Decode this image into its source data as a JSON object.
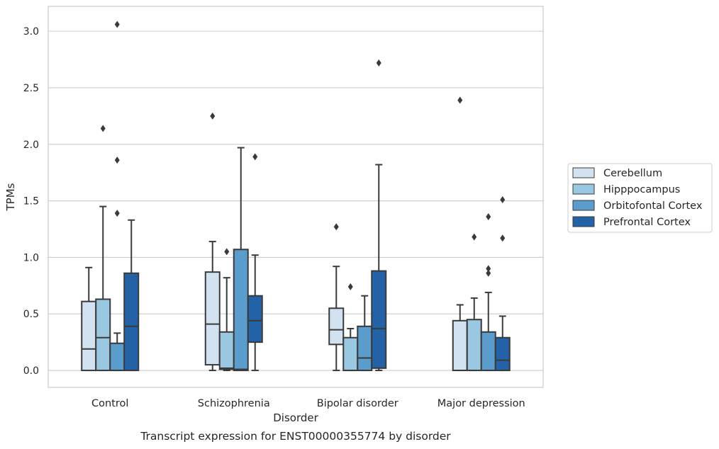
{
  "chart_data": {
    "type": "box",
    "title": "",
    "caption": "Transcript expression for ENST00000355774 by disorder",
    "xlabel": "Disorder",
    "ylabel": "TPMs",
    "ylim": [
      -0.15,
      3.22
    ],
    "yticks": [
      0.0,
      0.5,
      1.0,
      1.5,
      2.0,
      2.5,
      3.0
    ],
    "ytick_labels": [
      "0.0",
      "0.5",
      "1.0",
      "1.5",
      "2.0",
      "2.5",
      "3.0"
    ],
    "grid": "horizontal",
    "legend_position": "right",
    "categories": [
      "Control",
      "Schizophrenia",
      "Bipolar disorder",
      "Major depression"
    ],
    "series": [
      {
        "name": "Cerebellum",
        "color": "#d2e2f1",
        "boxes": [
          {
            "whisker_low": 0.0,
            "q1": 0.0,
            "median": 0.19,
            "q3": 0.61,
            "whisker_high": 0.91,
            "outliers": []
          },
          {
            "whisker_low": 0.0,
            "q1": 0.05,
            "median": 0.41,
            "q3": 0.87,
            "whisker_high": 1.14,
            "outliers": [
              2.25
            ]
          },
          {
            "whisker_low": 0.0,
            "q1": 0.23,
            "median": 0.36,
            "q3": 0.55,
            "whisker_high": 0.92,
            "outliers": [
              1.27
            ]
          },
          {
            "whisker_low": 0.0,
            "q1": 0.0,
            "median": 0.0,
            "q3": 0.44,
            "whisker_high": 0.58,
            "outliers": [
              2.39
            ]
          }
        ]
      },
      {
        "name": "Hipppocampus",
        "color": "#9ac8e0",
        "boxes": [
          {
            "whisker_low": 0.0,
            "q1": 0.0,
            "median": 0.29,
            "q3": 0.63,
            "whisker_high": 1.45,
            "outliers": [
              2.14
            ]
          },
          {
            "whisker_low": 0.0,
            "q1": 0.01,
            "median": 0.02,
            "q3": 0.34,
            "whisker_high": 0.82,
            "outliers": [
              1.05
            ]
          },
          {
            "whisker_low": 0.0,
            "q1": 0.0,
            "median": 0.0,
            "q3": 0.29,
            "whisker_high": 0.37,
            "outliers": [
              0.74
            ]
          },
          {
            "whisker_low": 0.0,
            "q1": 0.0,
            "median": 0.0,
            "q3": 0.45,
            "whisker_high": 0.64,
            "outliers": [
              1.18
            ]
          }
        ]
      },
      {
        "name": "Orbitofontal Cortex",
        "color": "#5a9ccb",
        "boxes": [
          {
            "whisker_low": 0.0,
            "q1": 0.0,
            "median": 0.0,
            "q3": 0.24,
            "whisker_high": 0.33,
            "outliers": [
              1.86,
              1.39,
              3.06
            ]
          },
          {
            "whisker_low": 0.0,
            "q1": 0.0,
            "median": 0.01,
            "q3": 1.07,
            "whisker_high": 1.97,
            "outliers": []
          },
          {
            "whisker_low": 0.0,
            "q1": 0.0,
            "median": 0.11,
            "q3": 0.39,
            "whisker_high": 0.66,
            "outliers": []
          },
          {
            "whisker_low": 0.0,
            "q1": 0.0,
            "median": 0.0,
            "q3": 0.34,
            "whisker_high": 0.69,
            "outliers": [
              0.86,
              0.9,
              1.36
            ]
          }
        ]
      },
      {
        "name": "Prefrontal Cortex",
        "color": "#2462a8",
        "boxes": [
          {
            "whisker_low": 0.0,
            "q1": 0.0,
            "median": 0.39,
            "q3": 0.86,
            "whisker_high": 1.33,
            "outliers": []
          },
          {
            "whisker_low": 0.0,
            "q1": 0.25,
            "median": 0.44,
            "q3": 0.66,
            "whisker_high": 1.02,
            "outliers": [
              1.89
            ]
          },
          {
            "whisker_low": 0.0,
            "q1": 0.02,
            "median": 0.37,
            "q3": 0.88,
            "whisker_high": 1.82,
            "outliers": [
              2.72
            ]
          },
          {
            "whisker_low": 0.0,
            "q1": 0.0,
            "median": 0.09,
            "q3": 0.29,
            "whisker_high": 0.48,
            "outliers": [
              1.51,
              1.17
            ]
          }
        ]
      }
    ]
  }
}
